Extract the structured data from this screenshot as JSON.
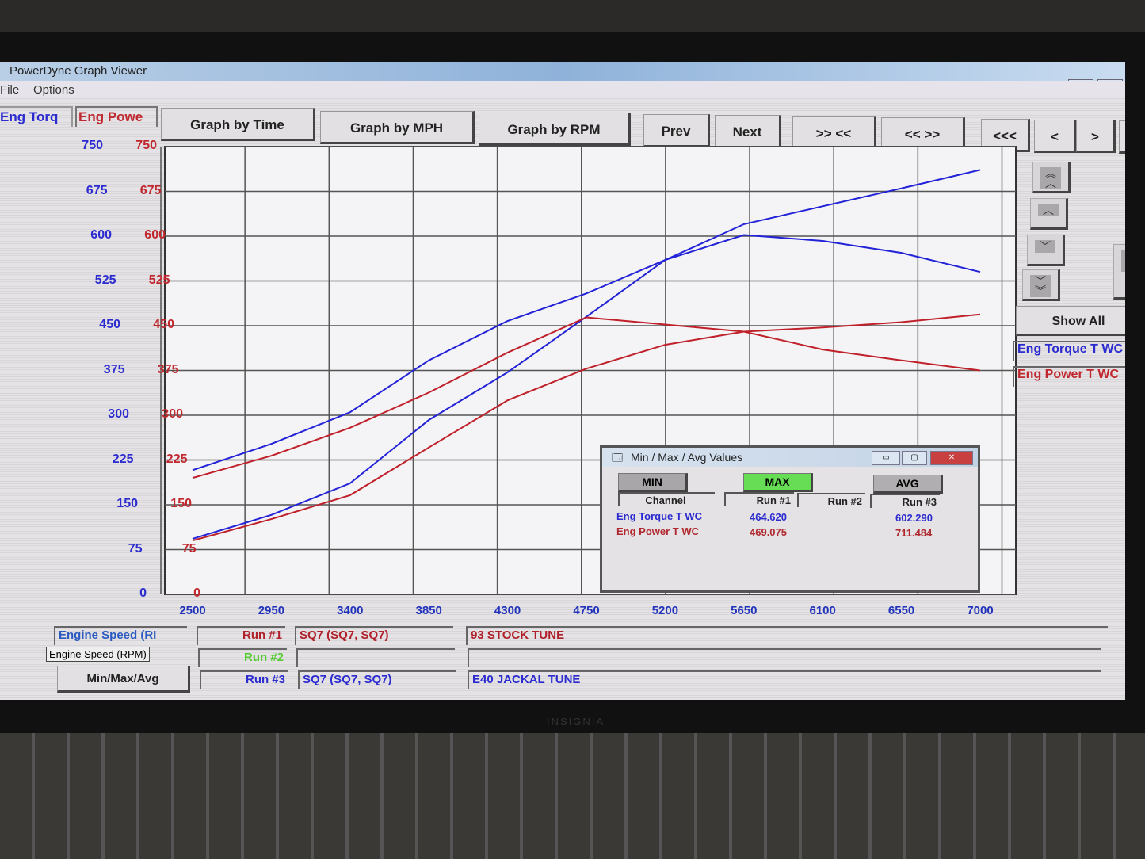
{
  "window": {
    "title": "PowerDyne Graph Viewer",
    "menu": [
      "File",
      "Options"
    ]
  },
  "channel_headers": {
    "left": "Eng Torq",
    "right": "Eng Powe"
  },
  "toolbar": {
    "buttons": [
      "Graph by Time",
      "Graph by MPH",
      "Graph by RPM",
      "Prev",
      "Next",
      ">> <<",
      "<< >>",
      "<<<",
      "<",
      ">",
      ">>"
    ]
  },
  "side_panel": {
    "show_all": "Show All",
    "channels": [
      {
        "label": "Eng Torque T WC",
        "color": "#2b2bd0"
      },
      {
        "label": "Eng Power T WC",
        "color": "#c0282f"
      }
    ],
    "scroll_icons": [
      "triple-chevron-up-icon",
      "chevron-up-icon",
      "chevron-down-icon",
      "triple-chevron-down-icon"
    ]
  },
  "chart_data": {
    "type": "line",
    "xlabel": "",
    "x_ticks": [
      2500,
      2950,
      3400,
      3850,
      4300,
      4750,
      5200,
      5650,
      6100,
      6550,
      7000
    ],
    "xlim": [
      2500,
      7000
    ],
    "y_left": {
      "label": "Eng Torq",
      "ticks": [
        0,
        75,
        150,
        225,
        300,
        375,
        450,
        525,
        600,
        675,
        750
      ],
      "color": "#2b2bd0"
    },
    "y_right": {
      "label": "Eng Powe",
      "ticks": [
        0,
        75,
        150,
        225,
        300,
        375,
        450,
        525,
        600,
        675,
        750
      ],
      "color": "#c0282f"
    },
    "ylim": [
      0,
      750
    ],
    "grid": true,
    "x": [
      2500,
      2950,
      3400,
      3850,
      4300,
      4750,
      5200,
      5650,
      6100,
      6550,
      7000
    ],
    "series": [
      {
        "name": "Eng Torque T WC",
        "run": "Run #3",
        "color": "#2222d8",
        "values": [
          208,
          252,
          305,
          392,
          458,
          504,
          560,
          602,
          592,
          572,
          540
        ]
      },
      {
        "name": "Eng Power T WC",
        "run": "Run #3",
        "color": "#2222d8",
        "values": [
          93,
          133,
          186,
          292,
          372,
          465,
          560,
          620,
          650,
          680,
          711
        ]
      },
      {
        "name": "Eng Torque T WC",
        "run": "Run #1",
        "color": "#c0202a",
        "values": [
          195,
          232,
          279,
          338,
          405,
          464,
          452,
          440,
          410,
          392,
          375
        ]
      },
      {
        "name": "Eng Power T WC",
        "run": "Run #1",
        "color": "#c0202a",
        "values": [
          90,
          126,
          166,
          246,
          325,
          378,
          418,
          440,
          447,
          456,
          469
        ]
      }
    ]
  },
  "minmax_dialog": {
    "title": "Min / Max / Avg Values",
    "modes": [
      "MIN",
      "MAX",
      "AVG"
    ],
    "active_mode": "MAX",
    "active_color": "#66dd55",
    "columns": [
      "Channel",
      "Run #1",
      "Run #2",
      "Run #3"
    ],
    "rows": [
      {
        "channel": "Eng Torque T WC",
        "run1": "464.620",
        "run2": "",
        "run3": "602.290",
        "color": "#2b2bd0"
      },
      {
        "channel": "Eng Power T WC",
        "run1": "469.075",
        "run2": "",
        "run3": "711.484",
        "color": "#b0282f"
      }
    ]
  },
  "bottom_panel": {
    "x_channel": "Engine Speed (RI",
    "x_channel_tooltip": "Engine Speed (RPM)",
    "minmax_button": "Min/Max/Avg",
    "runs": [
      {
        "label": "Run #1",
        "vehicle": "SQ7 (SQ7, SQ7)",
        "note": "93 STOCK TUNE",
        "color": "#b0202a"
      },
      {
        "label": "Run #2",
        "vehicle": "",
        "note": "",
        "color": "#55cc33"
      },
      {
        "label": "Run #3",
        "vehicle": "SQ7 (SQ7, SQ7)",
        "note": "E40 JACKAL TUNE",
        "color": "#2b2bd0"
      }
    ]
  },
  "monitor": {
    "brand": "INSIGNIA"
  }
}
